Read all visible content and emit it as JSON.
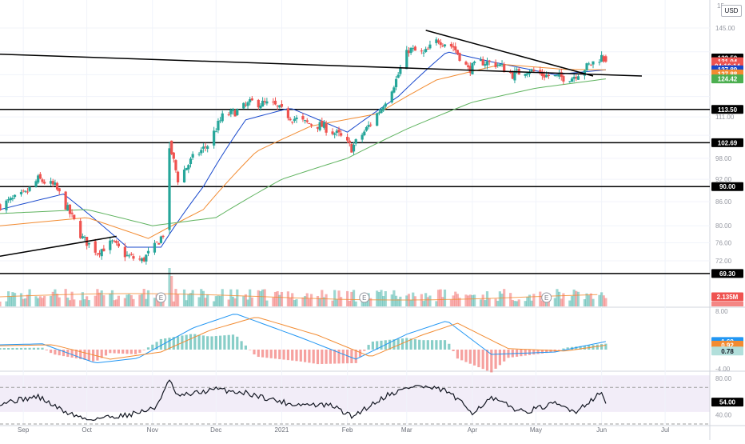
{
  "currency_label": "USD",
  "chart_data": [
    {
      "type": "candlestick",
      "panel": "price",
      "x_labels": [
        "Sep",
        "Oct",
        "Nov",
        "Dec",
        "2021",
        "Feb",
        "Mar",
        "Apr",
        "May",
        "Jun",
        "Jul"
      ],
      "y_ticks": [
        69.3,
        72.0,
        76.0,
        80.0,
        86.0,
        92.0,
        98.0,
        105.0,
        111.0,
        118.0,
        126.0,
        135.0,
        145.0
      ],
      "y_tick_labels": [
        "",
        "72.00",
        "76.00",
        "80.00",
        "86.00",
        "92.00",
        "98.00",
        "",
        "111.00",
        "",
        "",
        "",
        "145.00"
      ],
      "top_partial_label": "15",
      "scale": "log",
      "price_path": [
        {
          "date": "2020-08-21",
          "close": 85
        },
        {
          "date": "2020-09-02",
          "close": 88
        },
        {
          "date": "2020-09-08",
          "close": 92
        },
        {
          "date": "2020-09-16",
          "close": 90
        },
        {
          "date": "2020-09-22",
          "close": 84
        },
        {
          "date": "2020-09-29",
          "close": 77
        },
        {
          "date": "2020-10-06",
          "close": 74
        },
        {
          "date": "2020-10-13",
          "close": 76
        },
        {
          "date": "2020-10-20",
          "close": 73
        },
        {
          "date": "2020-10-27",
          "close": 72
        },
        {
          "date": "2020-11-02",
          "close": 75
        },
        {
          "date": "2020-11-06",
          "close": 78
        },
        {
          "date": "2020-11-09",
          "close": 102
        },
        {
          "date": "2020-11-13",
          "close": 92
        },
        {
          "date": "2020-11-20",
          "close": 98
        },
        {
          "date": "2020-11-27",
          "close": 102
        },
        {
          "date": "2020-12-04",
          "close": 111
        },
        {
          "date": "2020-12-11",
          "close": 113
        },
        {
          "date": "2020-12-18",
          "close": 116
        },
        {
          "date": "2020-12-28",
          "close": 115
        },
        {
          "date": "2021-01-05",
          "close": 111
        },
        {
          "date": "2021-01-12",
          "close": 109
        },
        {
          "date": "2021-01-20",
          "close": 108
        },
        {
          "date": "2021-01-28",
          "close": 105
        },
        {
          "date": "2021-02-03",
          "close": 101
        },
        {
          "date": "2021-02-10",
          "close": 107
        },
        {
          "date": "2021-02-17",
          "close": 114
        },
        {
          "date": "2021-02-24",
          "close": 124
        },
        {
          "date": "2021-03-02",
          "close": 136
        },
        {
          "date": "2021-03-09",
          "close": 134
        },
        {
          "date": "2021-03-16",
          "close": 140
        },
        {
          "date": "2021-03-23",
          "close": 137
        },
        {
          "date": "2021-03-30",
          "close": 128
        },
        {
          "date": "2021-04-06",
          "close": 131
        },
        {
          "date": "2021-04-13",
          "close": 130
        },
        {
          "date": "2021-04-20",
          "close": 126
        },
        {
          "date": "2021-04-27",
          "close": 128
        },
        {
          "date": "2021-05-04",
          "close": 126
        },
        {
          "date": "2021-05-11",
          "close": 125
        },
        {
          "date": "2021-05-18",
          "close": 125
        },
        {
          "date": "2021-05-25",
          "close": 129
        },
        {
          "date": "2021-06-01",
          "close": 133
        },
        {
          "date": "2021-06-03",
          "close": 131.04
        }
      ],
      "horizontal_levels": [
        113.5,
        102.69,
        90.0,
        69.3
      ],
      "trend_lines": [
        {
          "from": {
            "date": "2020-08-21",
            "price": 134
          },
          "to": {
            "date": "2021-06-20",
            "price": 125.5
          }
        },
        {
          "from": {
            "date": "2020-08-21",
            "price": 73
          },
          "to": {
            "date": "2020-10-15",
            "price": 77.5
          }
        },
        {
          "from": {
            "date": "2021-03-10",
            "price": 144
          },
          "to": {
            "date": "2021-05-28",
            "price": 125.5
          }
        }
      ],
      "series": [
        {
          "type": "line",
          "color": "#1848cc",
          "values": [
            {
              "date": "2020-08-21",
              "price": 84
            },
            {
              "date": "2020-09-20",
              "price": 88
            },
            {
              "date": "2020-10-20",
              "price": 75
            },
            {
              "date": "2020-11-05",
              "price": 75
            },
            {
              "date": "2020-11-25",
              "price": 90
            },
            {
              "date": "2020-12-15",
              "price": 110
            },
            {
              "date": "2021-01-05",
              "price": 114
            },
            {
              "date": "2021-02-01",
              "price": 106
            },
            {
              "date": "2021-02-25",
              "price": 118
            },
            {
              "date": "2021-03-20",
              "price": 135
            },
            {
              "date": "2021-04-10",
              "price": 131
            },
            {
              "date": "2021-05-10",
              "price": 126
            },
            {
              "date": "2021-06-03",
              "price": 127.89
            }
          ]
        },
        {
          "type": "line",
          "color": "#f28b31",
          "values": [
            {
              "date": "2020-08-21",
              "price": 80
            },
            {
              "date": "2020-10-01",
              "price": 82
            },
            {
              "date": "2020-10-30",
              "price": 77
            },
            {
              "date": "2020-11-25",
              "price": 84
            },
            {
              "date": "2020-12-20",
              "price": 100
            },
            {
              "date": "2021-01-15",
              "price": 108
            },
            {
              "date": "2021-02-15",
              "price": 112
            },
            {
              "date": "2021-03-15",
              "price": 124
            },
            {
              "date": "2021-04-15",
              "price": 130
            },
            {
              "date": "2021-05-15",
              "price": 128
            },
            {
              "date": "2021-06-03",
              "price": 127.88
            }
          ]
        },
        {
          "type": "line",
          "color": "#5fb35f",
          "values": [
            {
              "date": "2020-08-21",
              "price": 83
            },
            {
              "date": "2020-10-01",
              "price": 84
            },
            {
              "date": "2020-11-01",
              "price": 80
            },
            {
              "date": "2020-12-01",
              "price": 82
            },
            {
              "date": "2021-01-01",
              "price": 92
            },
            {
              "date": "2021-02-01",
              "price": 98
            },
            {
              "date": "2021-03-01",
              "price": 107
            },
            {
              "date": "2021-04-01",
              "price": 116
            },
            {
              "date": "2021-05-01",
              "price": 121
            },
            {
              "date": "2021-06-03",
              "price": 124.42
            }
          ]
        }
      ],
      "price_labels": [
        {
          "value": "132.50",
          "price": 132.5,
          "bg": "#000000",
          "fg": "#ffffff"
        },
        {
          "value": "131.04",
          "price": 131.04,
          "bg": "#ef5350",
          "fg": "#ffffff"
        },
        {
          "value": "04:16:14",
          "price": 129.3,
          "bg": "#ef5350",
          "fg": "#ffffff"
        },
        {
          "value": "127.89",
          "price": 127.89,
          "bg": "#1848cc",
          "fg": "#ffffff"
        },
        {
          "value": "127.88",
          "price": 126.3,
          "bg": "#f28b31",
          "fg": "#ffffff"
        },
        {
          "value": "124.42",
          "price": 124.42,
          "bg": "#4caf50",
          "fg": "#ffffff"
        },
        {
          "value": "113.50",
          "price": 113.5,
          "bg": "#000000",
          "fg": "#ffffff"
        },
        {
          "value": "102.69",
          "price": 102.69,
          "bg": "#000000",
          "fg": "#ffffff"
        },
        {
          "value": "90.00",
          "price": 90.0,
          "bg": "#000000",
          "fg": "#ffffff"
        },
        {
          "value": "69.30",
          "price": 69.3,
          "bg": "#000000",
          "fg": "#ffffff"
        }
      ],
      "earnings_markers": [
        {
          "date": "2020-11-05",
          "label": "E"
        },
        {
          "date": "2021-02-09",
          "label": "E"
        },
        {
          "date": "2021-05-06",
          "label": "E"
        }
      ]
    },
    {
      "type": "bar",
      "panel": "volume",
      "label": "2.135M",
      "label_color": "#ef5350",
      "last_value_millions": 2.135
    },
    {
      "type": "macd",
      "panel": "macd",
      "y_tick_labels": [
        "8.00",
        "-4.00"
      ],
      "y_range": [
        -4.5,
        8.5
      ],
      "values": [
        {
          "value": "1.69",
          "bg": "#2196f3",
          "level": 1.69
        },
        {
          "value": "0.92",
          "bg": "#f28b31",
          "level": 0.92
        },
        {
          "value": "0.78",
          "bg": "#b2dfdb",
          "fg": "#131722",
          "level": -0.3
        }
      ],
      "macd_path": [
        {
          "date": "2020-08-21",
          "v": 1.0
        },
        {
          "date": "2020-09-10",
          "v": 1.2
        },
        {
          "date": "2020-10-05",
          "v": -2.8
        },
        {
          "date": "2020-10-25",
          "v": -1.8
        },
        {
          "date": "2020-11-20",
          "v": 4.5
        },
        {
          "date": "2020-12-10",
          "v": 7.5
        },
        {
          "date": "2021-01-10",
          "v": 2.5
        },
        {
          "date": "2021-02-05",
          "v": -2.0
        },
        {
          "date": "2021-03-01",
          "v": 3.2
        },
        {
          "date": "2021-03-20",
          "v": 6.0
        },
        {
          "date": "2021-04-10",
          "v": -1.0
        },
        {
          "date": "2021-05-10",
          "v": -0.5
        },
        {
          "date": "2021-06-03",
          "v": 1.69
        }
      ],
      "signal_path": [
        {
          "date": "2020-08-21",
          "v": 0.8
        },
        {
          "date": "2020-09-15",
          "v": 1.0
        },
        {
          "date": "2020-10-12",
          "v": -2.0
        },
        {
          "date": "2020-11-05",
          "v": -0.5
        },
        {
          "date": "2020-11-28",
          "v": 4.0
        },
        {
          "date": "2020-12-20",
          "v": 6.8
        },
        {
          "date": "2021-01-18",
          "v": 3.0
        },
        {
          "date": "2021-02-12",
          "v": -1.5
        },
        {
          "date": "2021-03-08",
          "v": 3.0
        },
        {
          "date": "2021-03-25",
          "v": 5.5
        },
        {
          "date": "2021-04-18",
          "v": 0.2
        },
        {
          "date": "2021-05-15",
          "v": -0.3
        },
        {
          "date": "2021-06-03",
          "v": 0.92
        }
      ]
    },
    {
      "type": "line",
      "panel": "rsi",
      "y_tick_labels": [
        "80.00",
        "40.00"
      ],
      "y_range": [
        30,
        86
      ],
      "band": [
        30,
        70
      ],
      "last_value": "54.00",
      "path": [
        {
          "date": "2020-08-21",
          "v": 53
        },
        {
          "date": "2020-09-08",
          "v": 60
        },
        {
          "date": "2020-09-20",
          "v": 44
        },
        {
          "date": "2020-10-01",
          "v": 35
        },
        {
          "date": "2020-10-20",
          "v": 40
        },
        {
          "date": "2020-11-02",
          "v": 47
        },
        {
          "date": "2020-11-09",
          "v": 77
        },
        {
          "date": "2020-11-13",
          "v": 60
        },
        {
          "date": "2020-12-01",
          "v": 68
        },
        {
          "date": "2020-12-15",
          "v": 64
        },
        {
          "date": "2021-01-05",
          "v": 52
        },
        {
          "date": "2021-01-25",
          "v": 50
        },
        {
          "date": "2021-02-03",
          "v": 38
        },
        {
          "date": "2021-02-20",
          "v": 62
        },
        {
          "date": "2021-03-05",
          "v": 72
        },
        {
          "date": "2021-03-20",
          "v": 66
        },
        {
          "date": "2021-04-01",
          "v": 43
        },
        {
          "date": "2021-04-10",
          "v": 58
        },
        {
          "date": "2021-04-25",
          "v": 43
        },
        {
          "date": "2021-05-10",
          "v": 52
        },
        {
          "date": "2021-05-20",
          "v": 44
        },
        {
          "date": "2021-05-28",
          "v": 58
        },
        {
          "date": "2021-06-01",
          "v": 64
        },
        {
          "date": "2021-06-03",
          "v": 54
        }
      ]
    }
  ]
}
